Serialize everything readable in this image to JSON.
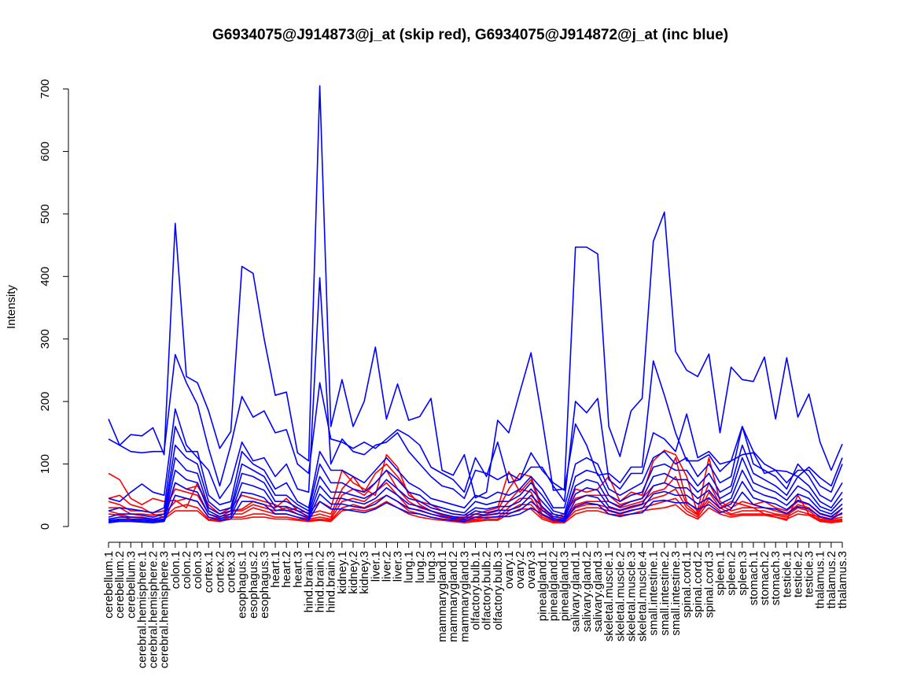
{
  "chart_data": {
    "type": "line",
    "title": "G6934075@J914873@j_at (skip red), G6934075@J914872@j_at (inc blue)",
    "xlabel": "",
    "ylabel": "Intensity",
    "ylim": [
      0,
      700
    ],
    "yticks": [
      0,
      100,
      200,
      300,
      400,
      500,
      600,
      700
    ],
    "grid": false,
    "legend": "none",
    "colors": {
      "skip": "#ff0000",
      "inc": "#0000ff",
      "axis": "#000000"
    },
    "categories": [
      "cerebellum.1",
      "cerebellum.2",
      "cerebellum.3",
      "cerebral.hemisphere.1",
      "cerebral.hemisphere.2",
      "cerebral.hemisphere.3",
      "colon.1",
      "colon.2",
      "colon.3",
      "cortex.1",
      "cortex.2",
      "cortex.3",
      "esophagus.1",
      "esophagus.2",
      "esophagus.3",
      "heart.1",
      "heart.2",
      "heart.3",
      "hind.brain.1",
      "hind.brain.2",
      "hind.brain.3",
      "kidney.1",
      "kidney.2",
      "kidney.3",
      "liver.1",
      "liver.2",
      "liver.3",
      "lung.1",
      "lung.2",
      "lung.3",
      "mammarygland.1",
      "mammarygland.2",
      "mammarygland.3",
      "olfactory.bulb.1",
      "olfactory.bulb.2",
      "olfactory.bulb.3",
      "ovary.1",
      "ovary.2",
      "ovary.3",
      "pinealgland.1",
      "pinealgland.2",
      "pinealgland.3",
      "salivary.gland.1",
      "salivary.gland.2",
      "salivary.gland.3",
      "skeletal.muscle.1",
      "skeletal.muscle.2",
      "skeletal.muscle.3",
      "skeletal.muscle.4",
      "small.intestine.1",
      "small.intestine.2",
      "small.intestine.3",
      "spinal.cord.1",
      "spinal.cord.2",
      "spinal.cord.3",
      "spleen.1",
      "spleen.2",
      "spleen.3",
      "stomach.1",
      "stomach.2",
      "stomach.3",
      "testicle.1",
      "testicle.2",
      "testicle.3",
      "thalamus.1",
      "thalamus.2",
      "thalamus.3"
    ],
    "series": [
      {
        "group": "skip",
        "values": [
          85,
          75,
          45,
          35,
          45,
          40,
          42,
          30,
          70,
          30,
          20,
          25,
          28,
          40,
          35,
          30,
          45,
          25,
          22,
          40,
          30,
          90,
          70,
          60,
          50,
          115,
          95,
          50,
          40,
          35,
          25,
          20,
          18,
          20,
          25,
          30,
          88,
          55,
          75,
          25,
          20,
          15,
          60,
          55,
          60,
          80,
          40,
          55,
          50,
          105,
          122,
          115,
          80,
          20,
          45,
          30,
          40,
          35,
          30,
          20,
          15,
          10,
          50,
          20,
          15,
          10,
          30
        ]
      },
      {
        "group": "skip",
        "values": [
          45,
          50,
          35,
          30,
          20,
          15,
          70,
          60,
          65,
          35,
          20,
          30,
          50,
          45,
          40,
          35,
          25,
          30,
          20,
          25,
          20,
          60,
          80,
          55,
          85,
          100,
          80,
          55,
          35,
          25,
          20,
          15,
          15,
          15,
          20,
          25,
          60,
          85,
          80,
          30,
          15,
          20,
          45,
          50,
          50,
          50,
          35,
          40,
          45,
          65,
          70,
          110,
          40,
          25,
          110,
          40,
          30,
          40,
          35,
          40,
          30,
          25,
          40,
          35,
          20,
          15,
          20
        ]
      },
      {
        "group": "skip",
        "values": [
          40,
          35,
          25,
          25,
          22,
          25,
          60,
          55,
          50,
          20,
          15,
          25,
          25,
          35,
          30,
          25,
          30,
          20,
          15,
          20,
          15,
          50,
          60,
          50,
          70,
          90,
          60,
          40,
          30,
          25,
          18,
          15,
          12,
          15,
          18,
          20,
          40,
          60,
          55,
          20,
          12,
          12,
          35,
          40,
          40,
          40,
          30,
          35,
          40,
          55,
          60,
          80,
          35,
          20,
          70,
          35,
          25,
          30,
          30,
          30,
          25,
          20,
          35,
          30,
          15,
          12,
          15
        ]
      },
      {
        "group": "skip",
        "values": [
          30,
          30,
          20,
          20,
          18,
          20,
          40,
          45,
          40,
          15,
          12,
          20,
          20,
          30,
          25,
          20,
          20,
          15,
          12,
          15,
          12,
          40,
          45,
          40,
          55,
          70,
          50,
          30,
          25,
          20,
          15,
          12,
          10,
          12,
          15,
          15,
          30,
          45,
          45,
          18,
          10,
          10,
          30,
          35,
          35,
          30,
          25,
          30,
          35,
          45,
          50,
          60,
          30,
          18,
          55,
          30,
          20,
          25,
          25,
          25,
          20,
          18,
          30,
          25,
          12,
          10,
          12
        ]
      },
      {
        "group": "skip",
        "values": [
          25,
          20,
          15,
          15,
          12,
          15,
          30,
          35,
          30,
          12,
          10,
          15,
          15,
          20,
          20,
          15,
          15,
          12,
          10,
          12,
          10,
          30,
          35,
          30,
          40,
          50,
          40,
          25,
          20,
          15,
          12,
          10,
          8,
          10,
          12,
          12,
          25,
          35,
          35,
          15,
          8,
          8,
          25,
          30,
          30,
          25,
          20,
          25,
          30,
          35,
          40,
          45,
          25,
          15,
          40,
          25,
          18,
          20,
          20,
          20,
          18,
          15,
          25,
          20,
          10,
          8,
          10
        ]
      },
      {
        "group": "skip",
        "values": [
          20,
          18,
          12,
          12,
          10,
          12,
          25,
          25,
          25,
          10,
          8,
          12,
          12,
          15,
          15,
          12,
          12,
          10,
          8,
          10,
          8,
          25,
          28,
          25,
          30,
          40,
          30,
          20,
          15,
          12,
          10,
          8,
          6,
          8,
          10,
          10,
          20,
          28,
          28,
          12,
          6,
          6,
          20,
          25,
          25,
          20,
          18,
          20,
          25,
          28,
          30,
          35,
          20,
          12,
          30,
          20,
          15,
          18,
          18,
          18,
          15,
          12,
          20,
          18,
          8,
          6,
          8
        ]
      },
      {
        "group": "inc",
        "values": [
          172,
          130,
          147,
          145,
          158,
          115,
          485,
          240,
          230,
          185,
          125,
          152,
          416,
          405,
          300,
          210,
          215,
          118,
          105,
          705,
          160,
          235,
          160,
          200,
          287,
          172,
          228,
          170,
          176,
          205,
          90,
          82,
          115,
          46,
          55,
          170,
          150,
          215,
          278,
          172,
          58,
          60,
          447,
          447,
          436,
          160,
          112,
          185,
          205,
          456,
          503,
          280,
          250,
          240,
          276,
          150,
          255,
          235,
          232,
          271,
          172,
          270,
          175,
          212,
          135,
          90,
          132
        ]
      },
      {
        "group": "inc",
        "values": [
          140,
          130,
          120,
          118,
          120,
          120,
          275,
          230,
          195,
          125,
          65,
          130,
          208,
          175,
          185,
          150,
          155,
          100,
          85,
          230,
          140,
          135,
          125,
          135,
          125,
          140,
          155,
          145,
          130,
          95,
          85,
          75,
          55,
          110,
          80,
          135,
          70,
          75,
          118,
          90,
          70,
          58,
          164,
          130,
          82,
          85,
          70,
          95,
          95,
          265,
          210,
          150,
          105,
          105,
          115,
          88,
          105,
          115,
          118,
          85,
          90,
          88,
          80,
          95,
          78,
          65,
          110
        ]
      },
      {
        "group": "inc",
        "values": [
          45,
          40,
          55,
          68,
          55,
          50,
          188,
          130,
          110,
          90,
          45,
          70,
          135,
          105,
          110,
          80,
          100,
          60,
          55,
          398,
          100,
          140,
          120,
          115,
          130,
          135,
          150,
          120,
          100,
          80,
          65,
          60,
          45,
          90,
          85,
          75,
          85,
          75,
          95,
          95,
          65,
          40,
          200,
          182,
          205,
          75,
          60,
          85,
          85,
          150,
          140,
          120,
          180,
          110,
          120,
          100,
          105,
          160,
          120,
          100,
          90,
          70,
          90,
          90,
          65,
          55,
          100
        ]
      },
      {
        "group": "inc",
        "values": [
          25,
          30,
          28,
          25,
          22,
          30,
          160,
          120,
          120,
          50,
          35,
          40,
          120,
          100,
          90,
          60,
          70,
          40,
          30,
          120,
          90,
          90,
          80,
          70,
          90,
          110,
          90,
          70,
          60,
          45,
          40,
          35,
          30,
          50,
          45,
          55,
          50,
          60,
          80,
          60,
          30,
          30,
          100,
          110,
          100,
          60,
          50,
          60,
          70,
          110,
          120,
          100,
          110,
          80,
          100,
          70,
          80,
          160,
          100,
          90,
          80,
          60,
          100,
          80,
          50,
          40,
          70
        ]
      },
      {
        "group": "inc",
        "values": [
          15,
          20,
          20,
          18,
          15,
          20,
          130,
          110,
          100,
          40,
          25,
          30,
          100,
          90,
          80,
          50,
          50,
          35,
          25,
          100,
          70,
          70,
          60,
          55,
          70,
          90,
          75,
          55,
          50,
          35,
          30,
          25,
          22,
          40,
          35,
          40,
          40,
          50,
          70,
          50,
          25,
          20,
          80,
          90,
          85,
          50,
          40,
          50,
          55,
          95,
          100,
          90,
          90,
          65,
          85,
          55,
          65,
          130,
          85,
          75,
          65,
          50,
          80,
          65,
          40,
          30,
          55
        ]
      },
      {
        "group": "inc",
        "values": [
          12,
          15,
          15,
          14,
          12,
          15,
          110,
          90,
          85,
          30,
          20,
          25,
          85,
          80,
          70,
          40,
          40,
          30,
          20,
          80,
          55,
          55,
          50,
          45,
          55,
          75,
          60,
          45,
          40,
          30,
          25,
          20,
          18,
          30,
          28,
          32,
          32,
          40,
          60,
          40,
          20,
          16,
          65,
          75,
          70,
          40,
          32,
          40,
          45,
          80,
          85,
          75,
          75,
          55,
          70,
          45,
          55,
          110,
          70,
          62,
          55,
          42,
          65,
          55,
          32,
          25,
          45
        ]
      },
      {
        "group": "inc",
        "values": [
          10,
          12,
          12,
          11,
          10,
          12,
          90,
          75,
          70,
          25,
          16,
          20,
          70,
          65,
          58,
          32,
          32,
          25,
          16,
          65,
          45,
          45,
          40,
          36,
          45,
          62,
          50,
          36,
          32,
          25,
          20,
          16,
          14,
          25,
          22,
          26,
          26,
          32,
          50,
          32,
          16,
          13,
          52,
          62,
          58,
          32,
          26,
          32,
          36,
          65,
          70,
          62,
          62,
          45,
          58,
          36,
          45,
          90,
          58,
          50,
          45,
          34,
          52,
          45,
          26,
          20,
          36
        ]
      },
      {
        "group": "inc",
        "values": [
          8,
          10,
          10,
          9,
          8,
          10,
          70,
          60,
          55,
          20,
          13,
          16,
          55,
          52,
          46,
          26,
          26,
          20,
          13,
          52,
          36,
          36,
          32,
          29,
          36,
          50,
          40,
          29,
          26,
          20,
          16,
          13,
          11,
          20,
          18,
          21,
          21,
          26,
          40,
          26,
          13,
          10,
          42,
          50,
          46,
          26,
          21,
          26,
          29,
          52,
          56,
          50,
          50,
          36,
          46,
          29,
          36,
          72,
          46,
          40,
          36,
          27,
          42,
          36,
          21,
          16,
          29
        ]
      },
      {
        "group": "inc",
        "values": [
          6,
          8,
          8,
          7,
          6,
          8,
          50,
          45,
          40,
          15,
          10,
          12,
          40,
          40,
          35,
          20,
          20,
          15,
          10,
          40,
          28,
          28,
          25,
          22,
          28,
          38,
          30,
          22,
          20,
          15,
          12,
          10,
          8,
          15,
          14,
          16,
          16,
          20,
          30,
          20,
          10,
          8,
          32,
          38,
          35,
          20,
          16,
          20,
          22,
          40,
          42,
          38,
          38,
          28,
          35,
          22,
          28,
          55,
          35,
          30,
          28,
          21,
          32,
          28,
          16,
          12,
          22
        ]
      }
    ]
  }
}
